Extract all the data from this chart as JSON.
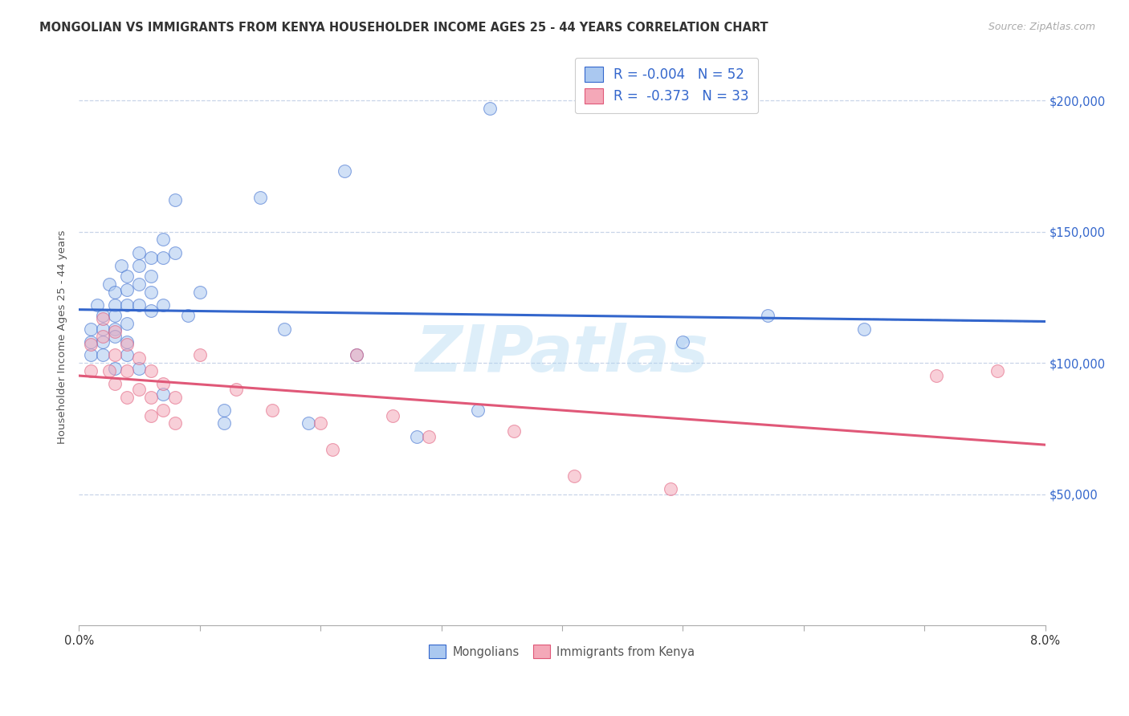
{
  "title": "MONGOLIAN VS IMMIGRANTS FROM KENYA HOUSEHOLDER INCOME AGES 25 - 44 YEARS CORRELATION CHART",
  "source": "Source: ZipAtlas.com",
  "ylabel": "Householder Income Ages 25 - 44 years",
  "ytick_labels": [
    "$50,000",
    "$100,000",
    "$150,000",
    "$200,000"
  ],
  "ytick_vals": [
    50000,
    100000,
    150000,
    200000
  ],
  "ylim": [
    0,
    220000
  ],
  "xlim": [
    0.0,
    0.08
  ],
  "legend1_r": "-0.004",
  "legend1_n": "52",
  "legend2_r": "-0.373",
  "legend2_n": "33",
  "legend1_color": "#aac8f0",
  "legend2_color": "#f4a8b8",
  "line1_color": "#3366cc",
  "line2_color": "#e05878",
  "watermark": "ZIPatlas",
  "mongolian_x": [
    0.001,
    0.001,
    0.001,
    0.0015,
    0.002,
    0.002,
    0.002,
    0.002,
    0.0025,
    0.003,
    0.003,
    0.003,
    0.003,
    0.003,
    0.003,
    0.0035,
    0.004,
    0.004,
    0.004,
    0.004,
    0.004,
    0.004,
    0.005,
    0.005,
    0.005,
    0.005,
    0.005,
    0.006,
    0.006,
    0.006,
    0.006,
    0.007,
    0.007,
    0.007,
    0.007,
    0.008,
    0.008,
    0.009,
    0.01,
    0.012,
    0.012,
    0.015,
    0.017,
    0.019,
    0.022,
    0.023,
    0.028,
    0.033,
    0.034,
    0.05,
    0.057,
    0.065
  ],
  "mongolian_y": [
    113000,
    108000,
    103000,
    122000,
    118000,
    113000,
    108000,
    103000,
    130000,
    127000,
    122000,
    118000,
    113000,
    110000,
    98000,
    137000,
    133000,
    128000,
    122000,
    115000,
    108000,
    103000,
    142000,
    137000,
    130000,
    122000,
    98000,
    140000,
    133000,
    127000,
    120000,
    147000,
    140000,
    122000,
    88000,
    162000,
    142000,
    118000,
    127000,
    82000,
    77000,
    163000,
    113000,
    77000,
    173000,
    103000,
    72000,
    82000,
    197000,
    108000,
    118000,
    113000
  ],
  "kenya_x": [
    0.001,
    0.001,
    0.002,
    0.002,
    0.0025,
    0.003,
    0.003,
    0.003,
    0.004,
    0.004,
    0.004,
    0.005,
    0.005,
    0.006,
    0.006,
    0.006,
    0.007,
    0.007,
    0.008,
    0.008,
    0.01,
    0.013,
    0.016,
    0.02,
    0.021,
    0.023,
    0.026,
    0.029,
    0.036,
    0.041,
    0.049,
    0.071,
    0.076
  ],
  "kenya_y": [
    107000,
    97000,
    117000,
    110000,
    97000,
    112000,
    103000,
    92000,
    107000,
    97000,
    87000,
    102000,
    90000,
    97000,
    87000,
    80000,
    92000,
    82000,
    87000,
    77000,
    103000,
    90000,
    82000,
    77000,
    67000,
    103000,
    80000,
    72000,
    74000,
    57000,
    52000,
    95000,
    97000
  ],
  "scatter_size": 130,
  "scatter_alpha": 0.55,
  "background_color": "#ffffff",
  "grid_color": "#c8d4e8",
  "title_fontsize": 10.5,
  "source_fontsize": 9
}
